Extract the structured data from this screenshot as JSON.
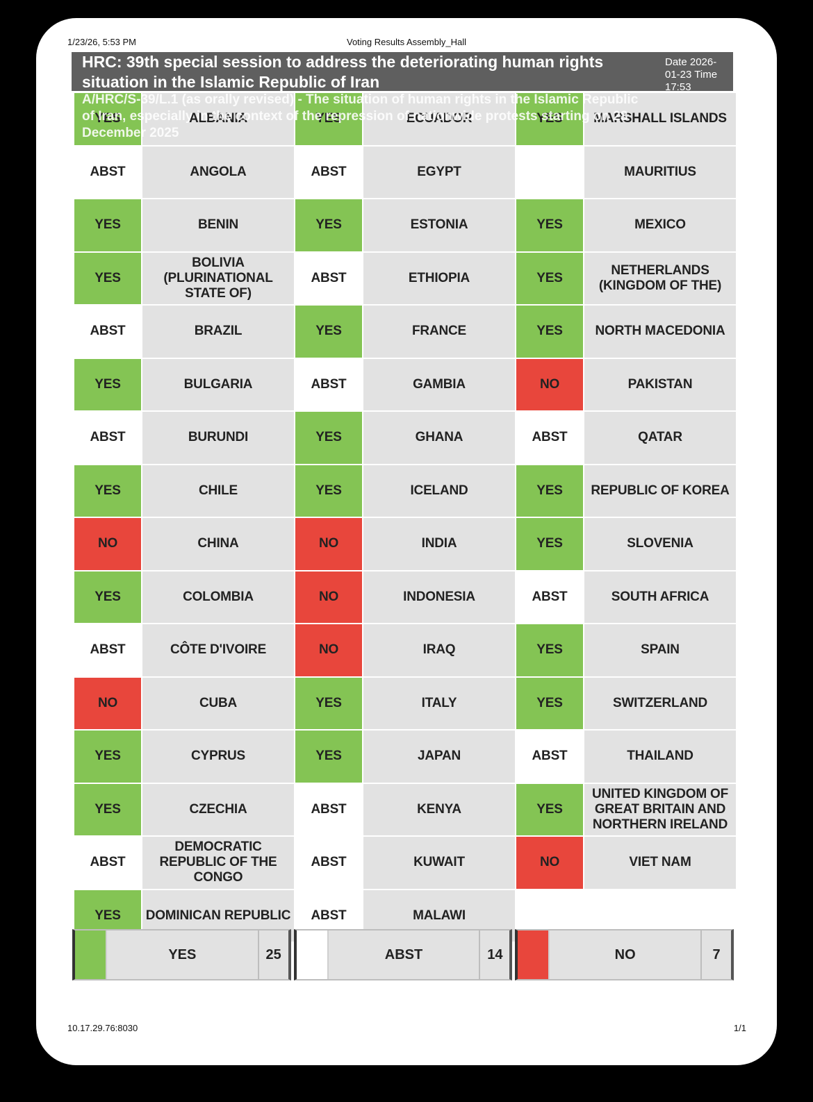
{
  "print_header": {
    "datetime": "1/23/26, 5:53 PM",
    "title": "Voting Results Assembly_Hall"
  },
  "print_footer": {
    "url": "10.17.29.76:8030",
    "page": "1/1"
  },
  "banner": {
    "title": "HRC: 39th special session to address the deteriorating human rights situation in the Islamic Republic of Iran",
    "date_time": "Date 2026-01-23 Time 17:53",
    "resolution": "A/HRC/S-39/L.1 (as orally revised) - The situation of human rights in the Islamic Republic of Iran, especially in the context of the repression of nationwide protests starting on 28 December 2025"
  },
  "colors": {
    "yes": "#84c454",
    "no": "#e8463c",
    "abst": "#ffffff",
    "name_bg": "#e2e2e2",
    "banner": "#5f5f5f"
  },
  "columns": [
    [
      {
        "vote": "YES",
        "country": "ALBANIA"
      },
      {
        "vote": "ABST",
        "country": "ANGOLA"
      },
      {
        "vote": "YES",
        "country": "BENIN"
      },
      {
        "vote": "YES",
        "country": "BOLIVIA (PLURINATIONAL STATE OF)"
      },
      {
        "vote": "ABST",
        "country": "BRAZIL"
      },
      {
        "vote": "YES",
        "country": "BULGARIA"
      },
      {
        "vote": "ABST",
        "country": "BURUNDI"
      },
      {
        "vote": "YES",
        "country": "CHILE"
      },
      {
        "vote": "NO",
        "country": "CHINA"
      },
      {
        "vote": "YES",
        "country": "COLOMBIA"
      },
      {
        "vote": "ABST",
        "country": "CÔTE D'IVOIRE"
      },
      {
        "vote": "NO",
        "country": "CUBA"
      },
      {
        "vote": "YES",
        "country": "CYPRUS"
      },
      {
        "vote": "YES",
        "country": "CZECHIA"
      },
      {
        "vote": "ABST",
        "country": "DEMOCRATIC REPUBLIC OF THE CONGO"
      },
      {
        "vote": "YES",
        "country": "DOMINICAN REPUBLIC"
      }
    ],
    [
      {
        "vote": "YES",
        "country": "ECUADOR"
      },
      {
        "vote": "ABST",
        "country": "EGYPT"
      },
      {
        "vote": "YES",
        "country": "ESTONIA"
      },
      {
        "vote": "ABST",
        "country": "ETHIOPIA"
      },
      {
        "vote": "YES",
        "country": "FRANCE"
      },
      {
        "vote": "ABST",
        "country": "GAMBIA"
      },
      {
        "vote": "YES",
        "country": "GHANA"
      },
      {
        "vote": "YES",
        "country": "ICELAND"
      },
      {
        "vote": "NO",
        "country": "INDIA"
      },
      {
        "vote": "NO",
        "country": "INDONESIA"
      },
      {
        "vote": "NO",
        "country": "IRAQ"
      },
      {
        "vote": "YES",
        "country": "ITALY"
      },
      {
        "vote": "YES",
        "country": "JAPAN"
      },
      {
        "vote": "ABST",
        "country": "KENYA"
      },
      {
        "vote": "ABST",
        "country": "KUWAIT"
      },
      {
        "vote": "ABST",
        "country": "MALAWI"
      }
    ],
    [
      {
        "vote": "YES",
        "country": "MARSHALL ISLANDS"
      },
      {
        "vote": "",
        "country": "MAURITIUS"
      },
      {
        "vote": "YES",
        "country": "MEXICO"
      },
      {
        "vote": "YES",
        "country": "NETHERLANDS (KINGDOM OF THE)"
      },
      {
        "vote": "YES",
        "country": "NORTH MACEDONIA"
      },
      {
        "vote": "NO",
        "country": "PAKISTAN"
      },
      {
        "vote": "ABST",
        "country": "QATAR"
      },
      {
        "vote": "YES",
        "country": "REPUBLIC OF KOREA"
      },
      {
        "vote": "YES",
        "country": "SLOVENIA"
      },
      {
        "vote": "ABST",
        "country": "SOUTH AFRICA"
      },
      {
        "vote": "YES",
        "country": "SPAIN"
      },
      {
        "vote": "YES",
        "country": "SWITZERLAND"
      },
      {
        "vote": "ABST",
        "country": "THAILAND"
      },
      {
        "vote": "YES",
        "country": "UNITED KINGDOM OF GREAT BRITAIN AND NORTHERN IRELAND"
      },
      {
        "vote": "NO",
        "country": "VIET NAM"
      }
    ]
  ],
  "totals": {
    "yes": {
      "label": "YES",
      "count": "25"
    },
    "abst": {
      "label": "ABST",
      "count": "14"
    },
    "no": {
      "label": "NO",
      "count": "7"
    }
  }
}
